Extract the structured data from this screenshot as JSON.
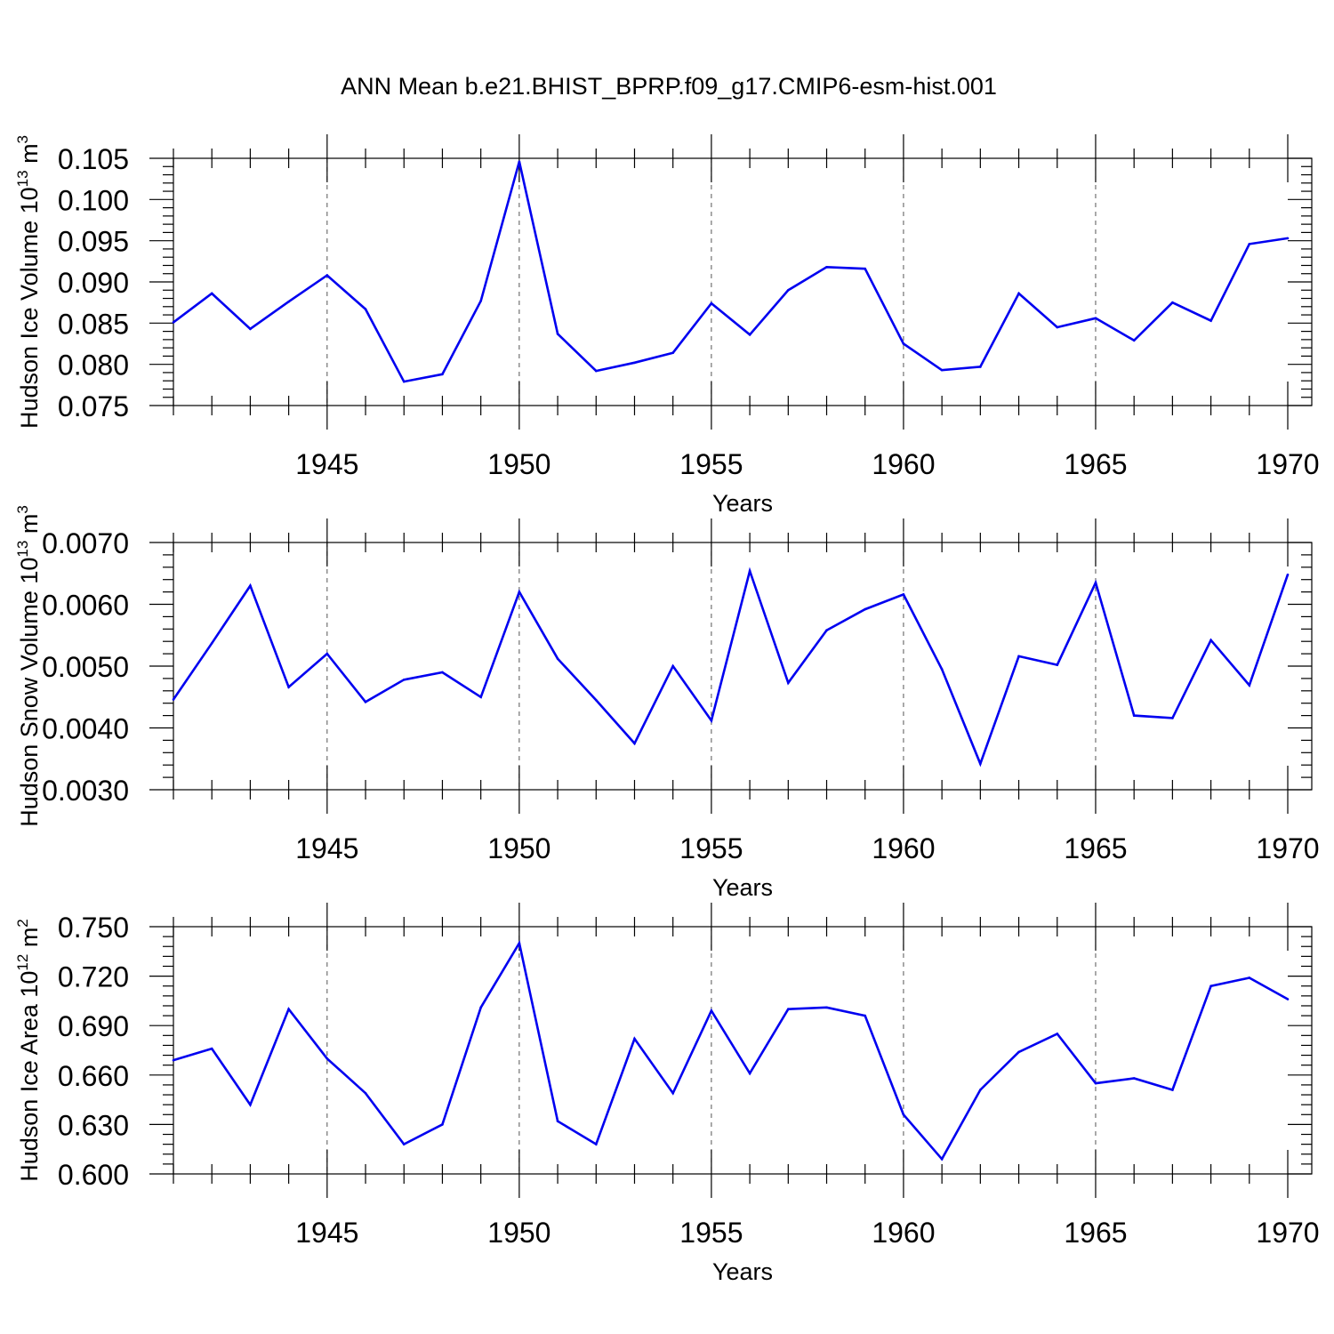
{
  "title": "ANN Mean b.e21.BHIST_BPRP.f09_g17.CMIP6-esm-hist.001",
  "chart_data": [
    {
      "type": "line",
      "title": "ANN Mean b.e21.BHIST_BPRP.f09_g17.CMIP6-esm-hist.001",
      "ylabel_main": "Hudson Ice Volume 10",
      "ylabel_exp": "13",
      "ylabel_unit": "m",
      "ylabel_unit_exp": "3",
      "xlabel": "Years",
      "xlim": [
        1941,
        1970
      ],
      "ylim": [
        0.075,
        0.105
      ],
      "x_ticks": [
        1945,
        1950,
        1955,
        1960,
        1965,
        1970
      ],
      "x_tick_labels": [
        "1945",
        "1950",
        "1955",
        "1960",
        "1965",
        "1970"
      ],
      "y_ticks": [
        0.075,
        0.08,
        0.085,
        0.09,
        0.095,
        0.1,
        0.105
      ],
      "y_tick_labels": [
        "0.075",
        "0.080",
        "0.085",
        "0.090",
        "0.095",
        "0.100",
        "0.105"
      ],
      "y_minor_step": 0.001,
      "grid": "dashed vertical at major x ticks",
      "series": [
        {
          "name": "Hudson Ice Volume",
          "color": "#0000f0",
          "x": [
            1941,
            1942,
            1943,
            1944,
            1945,
            1946,
            1947,
            1948,
            1949,
            1950,
            1951,
            1952,
            1953,
            1954,
            1955,
            1956,
            1957,
            1958,
            1959,
            1960,
            1961,
            1962,
            1963,
            1964,
            1965,
            1966,
            1967,
            1968,
            1969,
            1970
          ],
          "values": [
            0.0851,
            0.0886,
            0.0843,
            0.0876,
            0.0908,
            0.0867,
            0.0779,
            0.0788,
            0.0877,
            0.1046,
            0.0837,
            0.0792,
            0.0802,
            0.0814,
            0.0874,
            0.0836,
            0.089,
            0.0918,
            0.0916,
            0.0825,
            0.0793,
            0.0797,
            0.0886,
            0.0845,
            0.0856,
            0.0829,
            0.0875,
            0.0853,
            0.0946,
            0.0953
          ]
        }
      ]
    },
    {
      "type": "line",
      "ylabel_main": "Hudson Snow Volume 10",
      "ylabel_exp": "13",
      "ylabel_unit": "m",
      "ylabel_unit_exp": "3",
      "xlabel": "Years",
      "xlim": [
        1941,
        1970
      ],
      "ylim": [
        0.003,
        0.007
      ],
      "x_ticks": [
        1945,
        1950,
        1955,
        1960,
        1965,
        1970
      ],
      "x_tick_labels": [
        "1945",
        "1950",
        "1955",
        "1960",
        "1965",
        "1970"
      ],
      "y_ticks": [
        0.003,
        0.004,
        0.005,
        0.006,
        0.007
      ],
      "y_tick_labels": [
        "0.0030",
        "0.0040",
        "0.0050",
        "0.0060",
        "0.0070"
      ],
      "y_minor_step": 0.0002,
      "grid": "dashed vertical at major x ticks",
      "series": [
        {
          "name": "Hudson Snow Volume",
          "color": "#0000f0",
          "x": [
            1941,
            1942,
            1943,
            1944,
            1945,
            1946,
            1947,
            1948,
            1949,
            1950,
            1951,
            1952,
            1953,
            1954,
            1955,
            1956,
            1957,
            1958,
            1959,
            1960,
            1961,
            1962,
            1963,
            1964,
            1965,
            1966,
            1967,
            1968,
            1969,
            1970
          ],
          "values": [
            0.00446,
            0.00537,
            0.0063,
            0.00466,
            0.0052,
            0.00442,
            0.00478,
            0.0049,
            0.0045,
            0.0062,
            0.00512,
            0.00445,
            0.00375,
            0.005,
            0.00412,
            0.00654,
            0.00473,
            0.00558,
            0.00592,
            0.00616,
            0.00495,
            0.00342,
            0.00516,
            0.00502,
            0.00635,
            0.0042,
            0.00416,
            0.00542,
            0.00469,
            0.00648
          ]
        }
      ]
    },
    {
      "type": "line",
      "ylabel_main": "Hudson Ice Area 10",
      "ylabel_exp": "12",
      "ylabel_unit": "m",
      "ylabel_unit_exp": "2",
      "xlabel": "Years",
      "xlim": [
        1941,
        1970
      ],
      "ylim": [
        0.6,
        0.75
      ],
      "x_ticks": [
        1945,
        1950,
        1955,
        1960,
        1965,
        1970
      ],
      "x_tick_labels": [
        "1945",
        "1950",
        "1955",
        "1960",
        "1965",
        "1970"
      ],
      "y_ticks": [
        0.6,
        0.63,
        0.66,
        0.69,
        0.72,
        0.75
      ],
      "y_tick_labels": [
        "0.600",
        "0.630",
        "0.660",
        "0.690",
        "0.720",
        "0.750"
      ],
      "y_minor_step": 0.006,
      "grid": "dashed vertical at major x ticks",
      "series": [
        {
          "name": "Hudson Ice Area",
          "color": "#0000f0",
          "x": [
            1941,
            1942,
            1943,
            1944,
            1945,
            1946,
            1947,
            1948,
            1949,
            1950,
            1951,
            1952,
            1953,
            1954,
            1955,
            1956,
            1957,
            1958,
            1959,
            1960,
            1961,
            1962,
            1963,
            1964,
            1965,
            1966,
            1967,
            1968,
            1969,
            1970
          ],
          "values": [
            0.669,
            0.676,
            0.642,
            0.7,
            0.67,
            0.649,
            0.618,
            0.63,
            0.701,
            0.74,
            0.632,
            0.618,
            0.682,
            0.649,
            0.699,
            0.661,
            0.7,
            0.701,
            0.696,
            0.636,
            0.609,
            0.651,
            0.674,
            0.685,
            0.655,
            0.658,
            0.651,
            0.714,
            0.719,
            0.706
          ]
        }
      ]
    }
  ]
}
